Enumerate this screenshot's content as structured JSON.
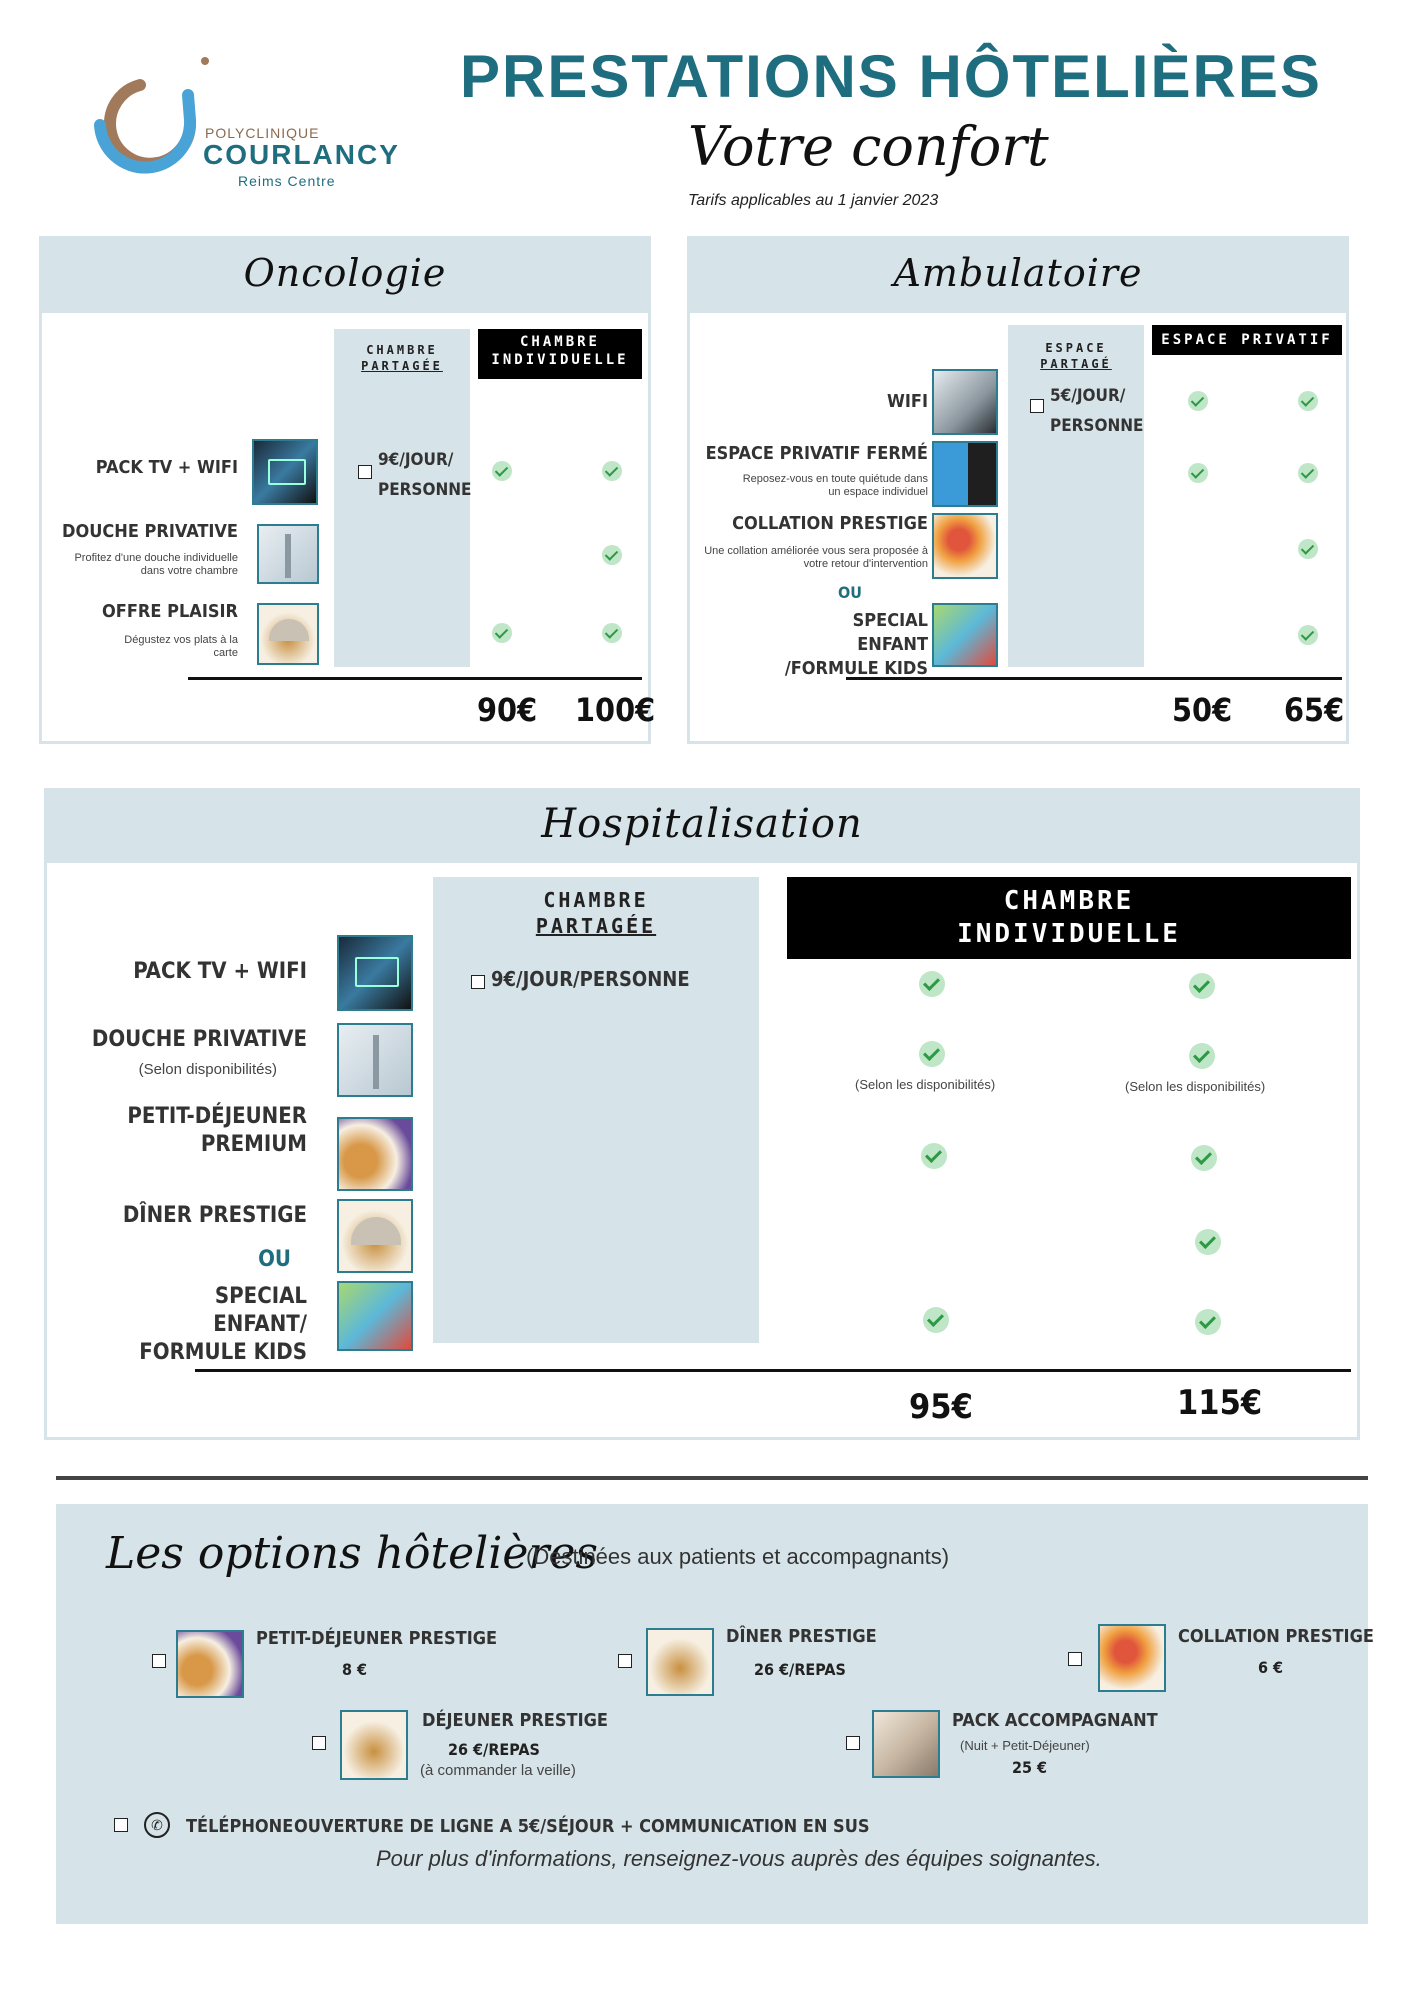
{
  "header": {
    "logo_top": "POLYCLINIQUE",
    "logo_main": "COURLANCY",
    "logo_sub": "Reims Centre",
    "title": "PRESTATIONS HÔTELIÈRES",
    "subtitle": "Votre confort",
    "date_note": "Tarifs applicables au  1  janvier 2023"
  },
  "oncologie": {
    "title": "Oncologie",
    "col_shared": [
      "CHAMBRE",
      "PARTAGÉE"
    ],
    "col_individual": [
      "CHAMBRE",
      "INDIVIDUELLE"
    ],
    "items": [
      {
        "label": "PACK TV + WIFI",
        "note": ""
      },
      {
        "label": "DOUCHE PRIVATIVE",
        "note": "Profitez d'une douche individuelle dans votre  chambre"
      },
      {
        "label": "OFFRE PLAISIR",
        "note": "Dégustez vos plats à la carte"
      }
    ],
    "shared_price": [
      "9€/JOUR/",
      "PERSONNE"
    ],
    "prices": [
      "90€",
      "100€"
    ]
  },
  "ambulatoire": {
    "title": "Ambulatoire",
    "col_shared": [
      "ESPACE",
      "PARTAGÉ"
    ],
    "col_private": "ESPACE PRIVATIF",
    "items": [
      {
        "label": "WIFI",
        "note": ""
      },
      {
        "label": "ESPACE PRIVATIF FERMÉ",
        "note": "Reposez-vous en toute quiétude dans un espace individuel"
      },
      {
        "label": "COLLATION PRESTIGE",
        "note": "Une collation améliorée vous sera proposée à votre retour d'intervention"
      },
      {
        "label": "SPECIAL ENFANT /FORMULE KIDS",
        "note": ""
      }
    ],
    "or": "OU",
    "shared_price": [
      "5€/JOUR/",
      "PERSONNE"
    ],
    "prices": [
      "50€",
      "65€"
    ]
  },
  "hospitalisation": {
    "title": "Hospitalisation",
    "col_shared": [
      "CHAMBRE",
      "PARTAGÉE"
    ],
    "col_individual": [
      "CHAMBRE",
      "INDIVIDUELLE"
    ],
    "items": [
      {
        "label": "PACK TV + WIFI",
        "note": ""
      },
      {
        "label": "DOUCHE PRIVATIVE",
        "note": "(Selon disponibilités)"
      },
      {
        "label": "PETIT-DÉJEUNER PREMIUM",
        "note": ""
      },
      {
        "label": "DÎNER PRESTIGE",
        "note": ""
      },
      {
        "label": "SPECIAL ENFANT/ FORMULE KIDS",
        "note": ""
      }
    ],
    "or": "OU",
    "shared_price": "9€/JOUR/PERSONNE",
    "availability_note": "(Selon les disponibilités)",
    "prices": [
      "95€",
      "115€"
    ]
  },
  "options": {
    "title": "Les options hôtelières",
    "subtitle": "(Destinées aux patients et accompagnants)",
    "items": [
      {
        "label": "PETIT-DÉJEUNER PRESTIGE",
        "price": "8 €"
      },
      {
        "label": "DÎNER PRESTIGE",
        "price": "26 €/REPAS"
      },
      {
        "label": "COLLATION PRESTIGE",
        "price": "6 €"
      },
      {
        "label": "DÉJEUNER PRESTIGE",
        "price": "26 €/REPAS",
        "note": "(à commander la veille)"
      },
      {
        "label": "PACK ACCOMPAGNANT",
        "price": "25 €",
        "note": "(Nuit + Petit-Déjeuner)"
      }
    ],
    "phone_label": "TÉLÉPHONE",
    "phone_text": "OUVERTURE DE LIGNE A 5€/SÉJOUR + COMMUNICATION EN SUS",
    "footer": "Pour plus d'informations, renseignez-vous auprès des équipes soignantes."
  },
  "icons": {
    "check": "check-circle-icon",
    "phone": "phone-icon",
    "checkbox": "checkbox-icon"
  },
  "colors": {
    "teal": "#1f6e80",
    "panel": "#d6e3e8",
    "check_bg": "#bfe6c6",
    "check_mark": "#2c9a45"
  }
}
